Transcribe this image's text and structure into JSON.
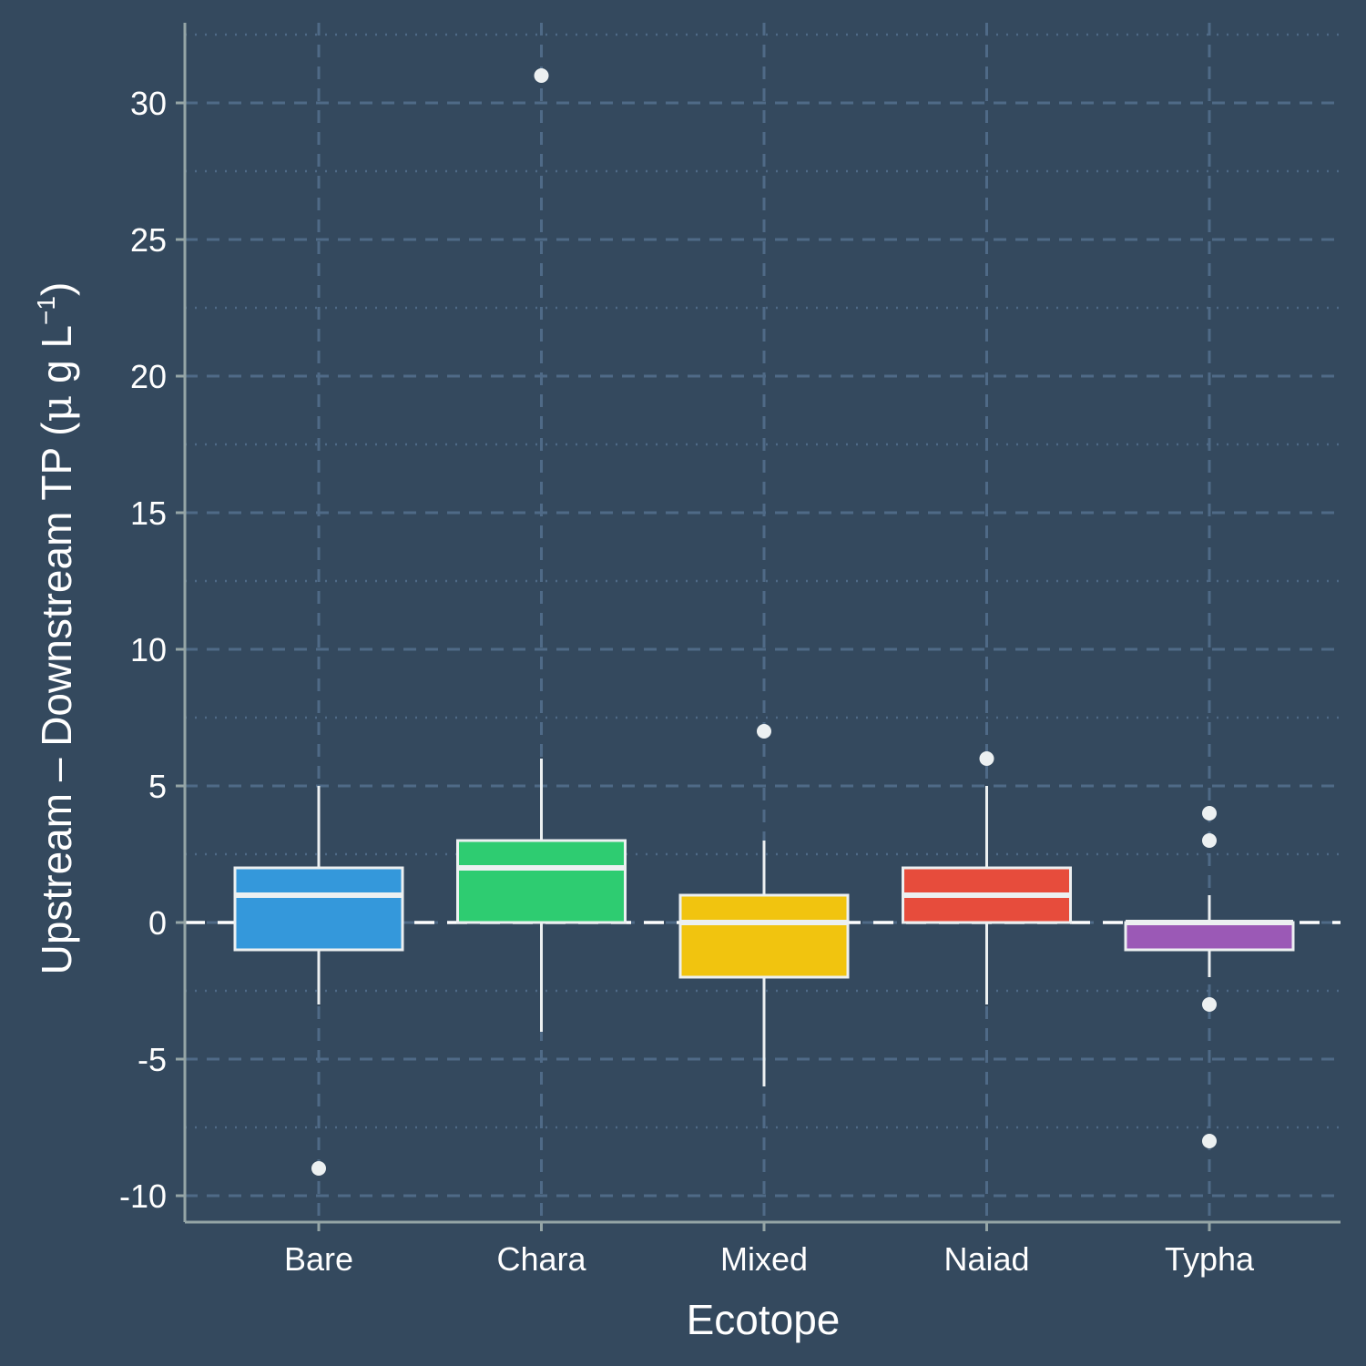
{
  "chart_data": {
    "type": "box",
    "xlabel": "Ecotope",
    "ylabel": {
      "main": "Upstream – Downstream TP (",
      "mu": "μ",
      "unit": " g L",
      "sup": "−1",
      "close": ")"
    },
    "ylim": [
      -11,
      33
    ],
    "yticks": [
      -10,
      -5,
      0,
      5,
      10,
      15,
      20,
      25,
      30
    ],
    "ytick_labels": [
      "-10",
      "-5",
      "0",
      "5",
      "10",
      "15",
      "20",
      "25",
      "30"
    ],
    "reference_line": 0,
    "grid": true,
    "categories": [
      "Bare",
      "Chara",
      "Mixed",
      "Naiad",
      "Typha"
    ],
    "boxes": [
      {
        "category": "Bare",
        "whisker_low": -3,
        "q1": -1,
        "median": 1,
        "q3": 2,
        "whisker_high": 5,
        "outliers": [
          -9
        ],
        "color": "#3498db"
      },
      {
        "category": "Chara",
        "whisker_low": -4,
        "q1": 0,
        "median": 2,
        "q3": 3,
        "whisker_high": 6,
        "outliers": [
          31
        ],
        "color": "#2ecc71"
      },
      {
        "category": "Mixed",
        "whisker_low": -6,
        "q1": -2,
        "median": 0,
        "q3": 1,
        "whisker_high": 3,
        "outliers": [
          7
        ],
        "color": "#f1c40f"
      },
      {
        "category": "Naiad",
        "whisker_low": -3,
        "q1": 0,
        "median": 1,
        "q3": 2,
        "whisker_high": 5,
        "outliers": [
          6
        ],
        "color": "#e74c3c"
      },
      {
        "category": "Typha",
        "whisker_low": -2,
        "q1": -1,
        "median": 0,
        "q3": 0,
        "whisker_high": 1,
        "outliers": [
          4,
          3,
          -3,
          -8
        ],
        "color": "#9b59b6"
      }
    ],
    "colors": {
      "background": "#34495e",
      "grid": "#4f6a87",
      "axis": "#95a5a6",
      "box_outline": "#ecf0f1",
      "text": "#ffffff"
    }
  }
}
